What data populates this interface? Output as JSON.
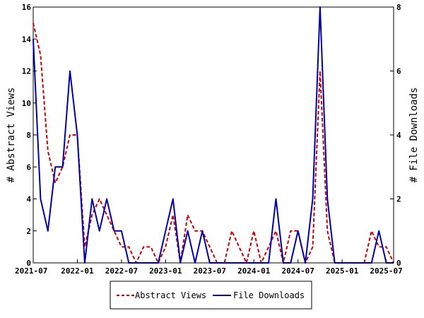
{
  "chart_data": {
    "type": "line",
    "x": [
      "2021-07",
      "2021-08",
      "2021-09",
      "2021-10",
      "2021-11",
      "2021-12",
      "2022-01",
      "2022-02",
      "2022-03",
      "2022-04",
      "2022-05",
      "2022-06",
      "2022-07",
      "2022-08",
      "2022-09",
      "2022-10",
      "2022-11",
      "2022-12",
      "2023-01",
      "2023-02",
      "2023-03",
      "2023-04",
      "2023-05",
      "2023-06",
      "2023-07",
      "2023-08",
      "2023-09",
      "2023-10",
      "2023-11",
      "2023-12",
      "2024-01",
      "2024-02",
      "2024-03",
      "2024-04",
      "2024-05",
      "2024-06",
      "2024-07",
      "2024-08",
      "2024-09",
      "2024-10",
      "2024-11",
      "2024-12",
      "2025-01",
      "2025-02",
      "2025-03",
      "2025-04",
      "2025-05",
      "2025-06",
      "2025-07",
      "2025-08"
    ],
    "x_ticks": [
      "2021-07",
      "2022-01",
      "2022-07",
      "2023-01",
      "2023-07",
      "2024-01",
      "2024-07",
      "2025-01",
      "2025-07"
    ],
    "series": [
      {
        "name": "Abstract Views",
        "axis": "left",
        "color": "#cc0000",
        "style": "dashed",
        "values": [
          15,
          13,
          7,
          5,
          6,
          8,
          8,
          1,
          3,
          4,
          3,
          2,
          1,
          1,
          0,
          1,
          1,
          0,
          1,
          3,
          0,
          3,
          2,
          2,
          1,
          0,
          0,
          2,
          1,
          0,
          2,
          0,
          1,
          2,
          0,
          2,
          2,
          0,
          1,
          12,
          2,
          0,
          0,
          0,
          0,
          0,
          2,
          1,
          1,
          0
        ]
      },
      {
        "name": "File Downloads",
        "axis": "right",
        "color": "#0000aa",
        "style": "solid",
        "values": [
          7,
          2,
          1,
          3,
          3,
          6,
          4,
          0,
          2,
          1,
          2,
          1,
          1,
          0,
          0,
          0,
          0,
          0,
          1,
          2,
          0,
          1,
          0,
          1,
          0,
          0,
          0,
          0,
          0,
          0,
          0,
          0,
          0,
          2,
          0,
          0,
          1,
          0,
          2,
          8,
          2,
          0,
          0,
          0,
          0,
          0,
          0,
          1,
          0,
          0
        ]
      }
    ],
    "y_left": {
      "label": "# Abstract Views",
      "range": [
        0,
        16
      ],
      "ticks": [
        "0",
        "2",
        "4",
        "6",
        "8",
        "10",
        "12",
        "14",
        "16"
      ]
    },
    "y_right": {
      "label": "# File Downloads",
      "range": [
        0,
        8
      ],
      "ticks": [
        "0",
        "2",
        "4",
        "6",
        "8"
      ]
    },
    "grid": false,
    "legend_position": "bottom-center"
  }
}
